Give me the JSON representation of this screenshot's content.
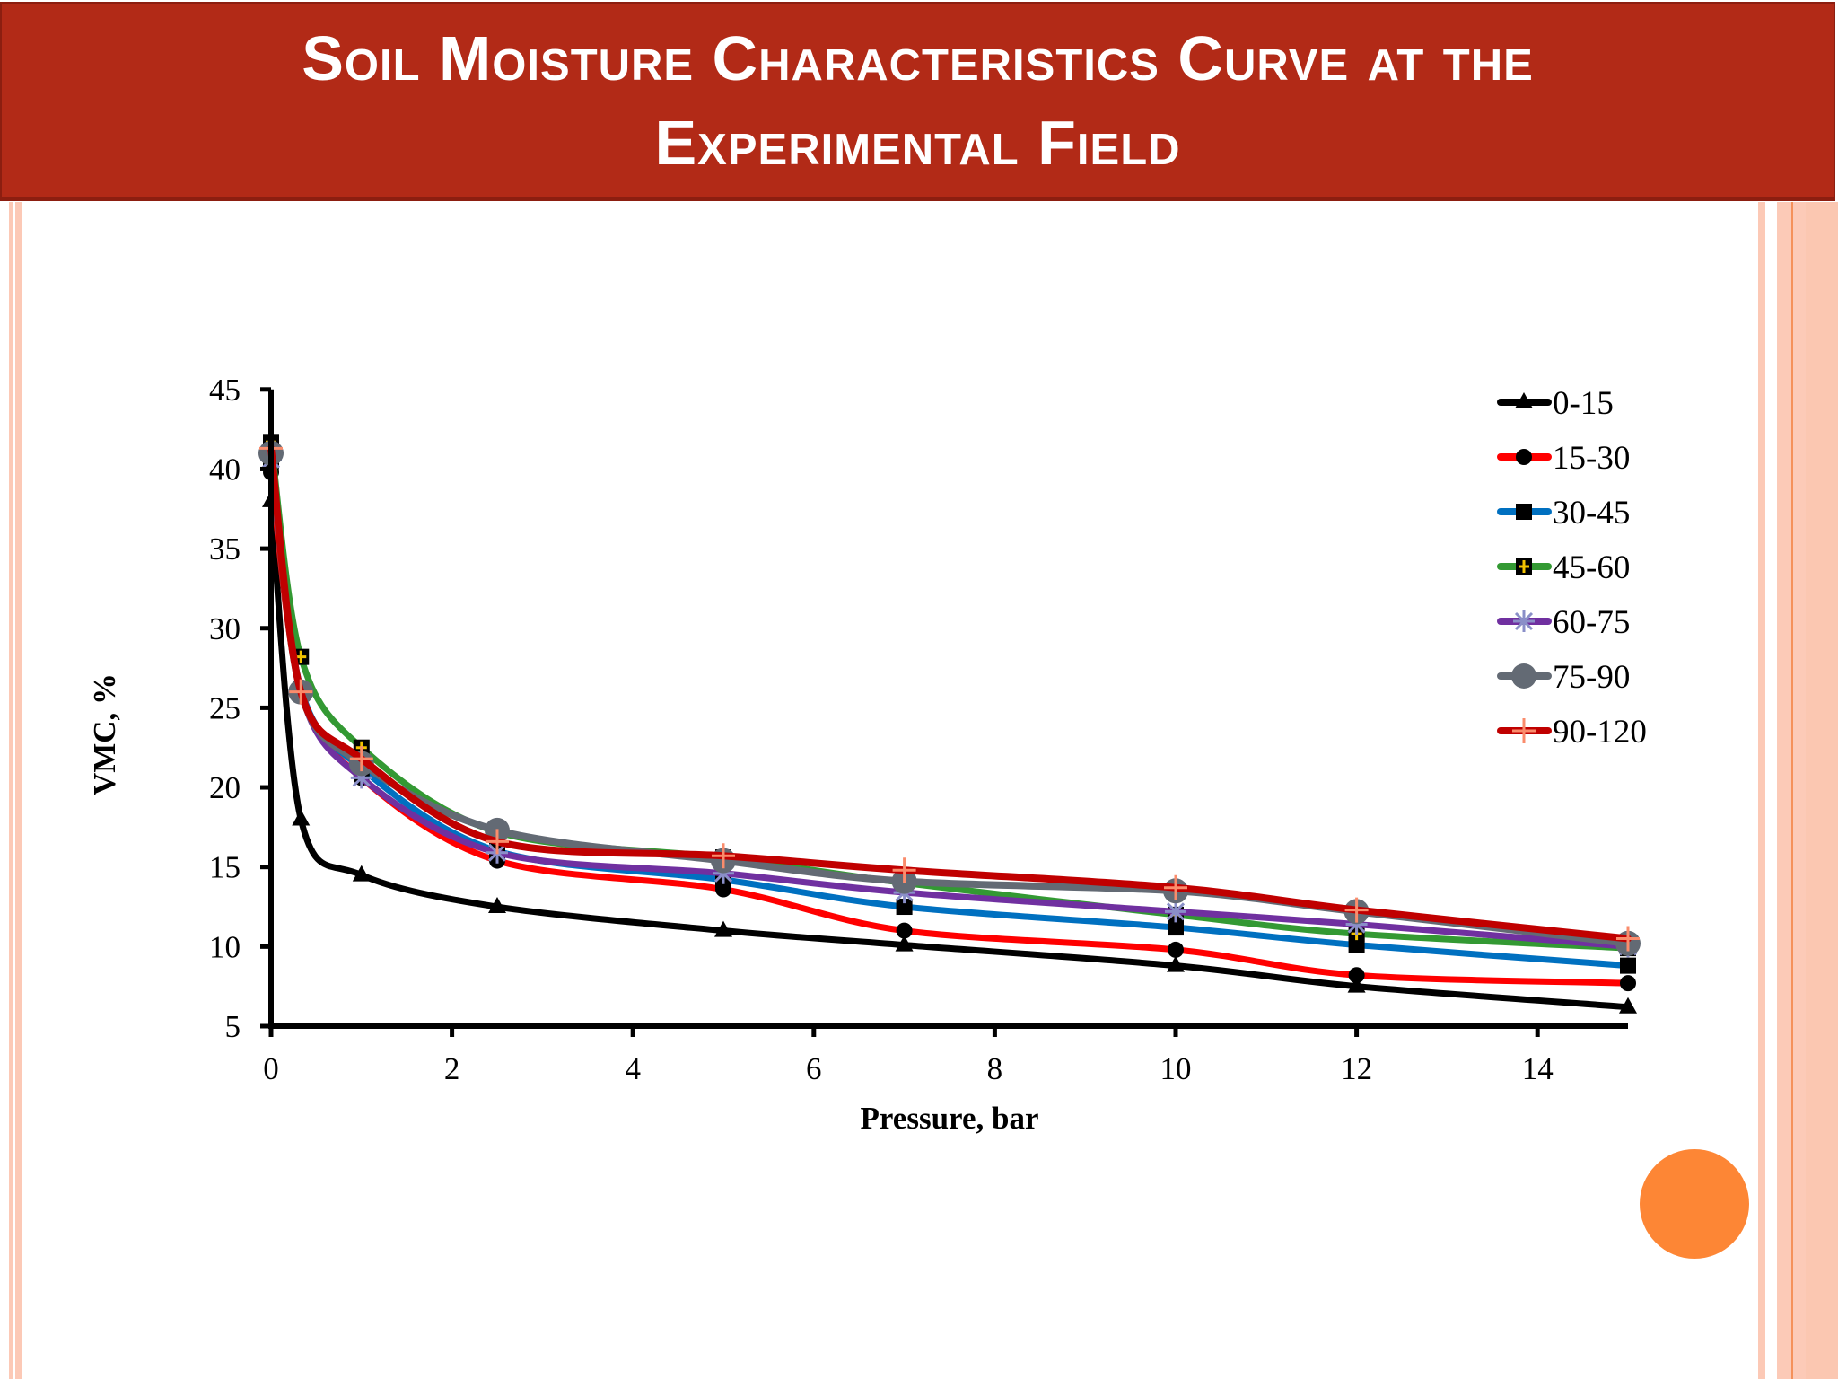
{
  "slide": {
    "title_line1": "Soil Moisture Characteristics Curve at the",
    "title_line2": "Experimental Field",
    "colors": {
      "banner": "#b22a17",
      "banner_border": "#8c1e10",
      "stripe": "#fcc9b6",
      "accent_circle": "#fd8635"
    }
  },
  "chart_data": {
    "type": "line",
    "title": "",
    "xlabel": "Pressure, bar",
    "ylabel": "VMC, %",
    "xlim": [
      0,
      15
    ],
    "ylim": [
      5,
      45
    ],
    "xticks": [
      0,
      2,
      4,
      6,
      8,
      10,
      12,
      14
    ],
    "yticks": [
      5,
      10,
      15,
      20,
      25,
      30,
      35,
      40,
      45
    ],
    "grid": false,
    "legend_position": "upper right",
    "x": [
      0,
      0.33,
      1,
      2.5,
      5,
      7,
      10,
      12,
      15
    ],
    "series": [
      {
        "name": "0-15",
        "color": "#000000",
        "marker": "triangle",
        "values": [
          38.0,
          18.0,
          14.5,
          12.5,
          11.0,
          10.1,
          8.8,
          7.5,
          6.2
        ]
      },
      {
        "name": "15-30",
        "color": "#ff0000",
        "marker": "circle",
        "values": [
          39.8,
          26.0,
          20.6,
          15.4,
          13.6,
          11.0,
          9.8,
          8.2,
          7.7
        ]
      },
      {
        "name": "30-45",
        "color": "#0070c0",
        "marker": "square",
        "values": [
          40.5,
          26.2,
          21.2,
          16.0,
          14.2,
          12.5,
          11.2,
          10.1,
          8.8
        ]
      },
      {
        "name": "45-60",
        "color": "#339933",
        "marker": "square-plus",
        "values": [
          41.7,
          28.2,
          22.5,
          17.2,
          15.6,
          14.0,
          12.0,
          10.8,
          9.9
        ]
      },
      {
        "name": "60-75",
        "color": "#7030a0",
        "marker": "star",
        "values": [
          40.6,
          26.0,
          20.6,
          15.9,
          14.6,
          13.4,
          12.2,
          11.4,
          10.0
        ]
      },
      {
        "name": "75-90",
        "color": "#636a74",
        "marker": "big-circle",
        "values": [
          41.0,
          26.0,
          21.5,
          17.3,
          15.4,
          14.1,
          13.5,
          12.2,
          10.2
        ]
      },
      {
        "name": "90-120",
        "color": "#c00000",
        "marker": "cross",
        "values": [
          41.3,
          26.0,
          21.8,
          16.6,
          15.7,
          14.8,
          13.7,
          12.3,
          10.5
        ]
      }
    ]
  }
}
